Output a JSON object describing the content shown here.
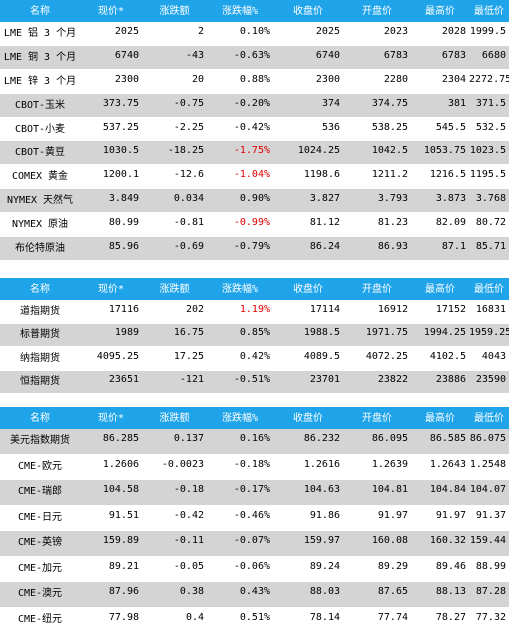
{
  "tables": [
    {
      "headers": [
        "名称",
        "现价*",
        "涨跌额",
        "涨跌幅%",
        "收盘价",
        "开盘价",
        "最高价",
        "最低价"
      ],
      "rows": [
        {
          "cells": [
            "LME 铝 3 个月",
            "2025",
            "2",
            "0.10%",
            "2025",
            "2023",
            "2028",
            "1999.5"
          ]
        },
        {
          "cells": [
            "LME 铜 3 个月",
            "6740",
            "-43",
            "-0.63%",
            "6740",
            "6783",
            "6783",
            "6680"
          ]
        },
        {
          "cells": [
            "LME 锌 3 个月",
            "2300",
            "20",
            "0.88%",
            "2300",
            "2280",
            "2304",
            "2272.75"
          ]
        },
        {
          "cells": [
            "CBOT-玉米",
            "373.75",
            "-0.75",
            "-0.20%",
            "374",
            "374.75",
            "381",
            "371.5"
          ]
        },
        {
          "cells": [
            "CBOT-小麦",
            "537.25",
            "-2.25",
            "-0.42%",
            "536",
            "538.25",
            "545.5",
            "532.5"
          ]
        },
        {
          "cells": [
            "CBOT-黄豆",
            "1030.5",
            "-18.25",
            "-1.75%",
            "1024.25",
            "1042.5",
            "1053.75",
            "1023.5"
          ],
          "red_pct": true
        },
        {
          "cells": [
            "COMEX 黄金",
            "1200.1",
            "-12.6",
            "-1.04%",
            "1198.6",
            "1211.2",
            "1216.5",
            "1195.5"
          ],
          "red_pct": true
        },
        {
          "cells": [
            "NYMEX 天然气",
            "3.849",
            "0.034",
            "0.90%",
            "3.827",
            "3.793",
            "3.873",
            "3.768"
          ]
        },
        {
          "cells": [
            "NYMEX 原油",
            "80.99",
            "-0.81",
            "-0.99%",
            "81.12",
            "81.23",
            "82.09",
            "80.72"
          ],
          "red_pct": true
        },
        {
          "cells": [
            "布伦特原油",
            "85.96",
            "-0.69",
            "-0.79%",
            "86.24",
            "86.93",
            "87.1",
            "85.71"
          ]
        }
      ]
    },
    {
      "headers": [
        "名称",
        "现价*",
        "涨跌额",
        "涨跌幅%",
        "收盘价",
        "开盘价",
        "最高价",
        "最低价"
      ],
      "rows": [
        {
          "cells": [
            "道指期货",
            "17116",
            "202",
            "1.19%",
            "17114",
            "16912",
            "17152",
            "16831"
          ],
          "red_pct": true
        },
        {
          "cells": [
            "标普期货",
            "1989",
            "16.75",
            "0.85%",
            "1988.5",
            "1971.75",
            "1994.25",
            "1959.25"
          ]
        },
        {
          "cells": [
            "纳指期货",
            "4095.25",
            "17.25",
            "0.42%",
            "4089.5",
            "4072.25",
            "4102.5",
            "4043"
          ]
        },
        {
          "cells": [
            "恒指期货",
            "23651",
            "-121",
            "-0.51%",
            "23701",
            "23822",
            "23886",
            "23590"
          ]
        }
      ]
    },
    {
      "headers": [
        "名称",
        "现价*",
        "涨跌额",
        "涨跌幅%",
        "收盘价",
        "开盘价",
        "最高价",
        "最低价"
      ],
      "rows": [
        {
          "cells": [
            "美元指数期货",
            "86.285",
            "0.137",
            "0.16%",
            "86.232",
            "86.095",
            "86.585",
            "86.075"
          ]
        },
        {
          "cells": [
            "CME-欧元",
            "1.2606",
            "-0.0023",
            "-0.18%",
            "1.2616",
            "1.2639",
            "1.2643",
            "1.2548"
          ]
        },
        {
          "cells": [
            "CME-瑞郎",
            "104.58",
            "-0.18",
            "-0.17%",
            "104.63",
            "104.81",
            "104.84",
            "104.07"
          ]
        },
        {
          "cells": [
            "CME-日元",
            "91.51",
            "-0.42",
            "-0.46%",
            "91.86",
            "91.97",
            "91.97",
            "91.37"
          ]
        },
        {
          "cells": [
            "CME-英镑",
            "159.89",
            "-0.11",
            "-0.07%",
            "159.97",
            "160.08",
            "160.32",
            "159.44"
          ]
        },
        {
          "cells": [
            "CME-加元",
            "89.21",
            "-0.05",
            "-0.06%",
            "89.24",
            "89.29",
            "89.46",
            "88.99"
          ]
        },
        {
          "cells": [
            "CME-澳元",
            "87.96",
            "0.38",
            "0.43%",
            "88.03",
            "87.65",
            "88.13",
            "87.28"
          ]
        },
        {
          "cells": [
            "CME-纽元",
            "77.98",
            "0.4",
            "0.51%",
            "78.14",
            "77.74",
            "78.27",
            "77.32"
          ]
        }
      ]
    }
  ],
  "colors": {
    "header_bg": "#1fa4ea",
    "header_text": "#ffffff",
    "row_shade": "#d4d4d4",
    "negative_pct": "#e00000"
  }
}
